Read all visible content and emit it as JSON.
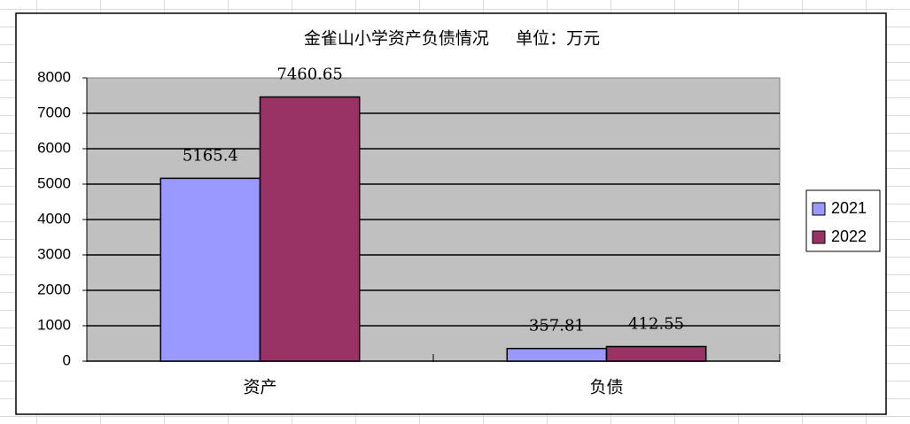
{
  "chart_data": {
    "type": "bar",
    "title": "金雀山小学资产负债情况     单位：万元",
    "categories": [
      "资产",
      "负债"
    ],
    "series": [
      {
        "name": "2021",
        "color": "#9999ff",
        "values": [
          5165.4,
          357.81
        ]
      },
      {
        "name": "2022",
        "color": "#993366",
        "values": [
          7460.65,
          412.55
        ]
      }
    ],
    "ylim": [
      0,
      8000
    ],
    "yticks": [
      0,
      1000,
      2000,
      3000,
      4000,
      5000,
      6000,
      7000,
      8000
    ],
    "grid": true,
    "legend": "right"
  }
}
